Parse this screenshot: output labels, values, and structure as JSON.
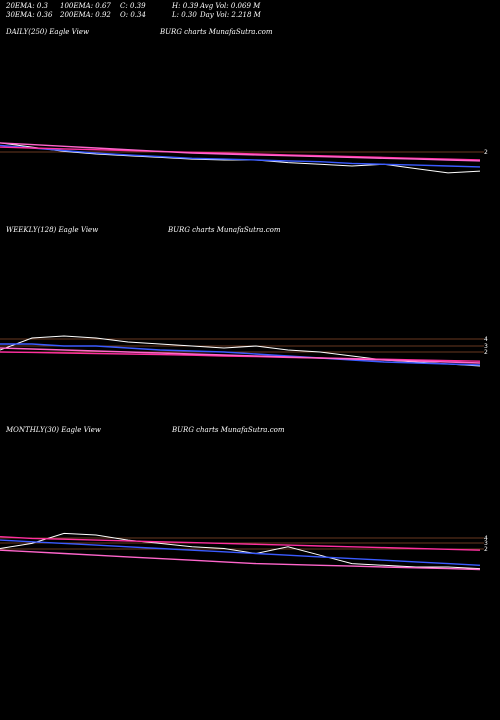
{
  "header": {
    "ema20": "20EMA: 0.3",
    "ema30": "30EMA: 0.36",
    "ema100": "100EMA: 0.67",
    "ema200": "200EMA: 0.92",
    "close": "C: 0.39",
    "open": "O: 0.34",
    "high": "H: 0.39",
    "low": "L: 0.30",
    "avg_vol": "Avg Vol: 0.069 M",
    "day_vol": "Day Vol: 2.218 M"
  },
  "panels": [
    {
      "label": "DAILY(250) Eagle   View",
      "watermark": "BURG charts MunafaSutra.com"
    },
    {
      "label": "WEEKLY(128) Eagle   View",
      "watermark": "BURG charts MunafaSutra.com"
    },
    {
      "label": "MONTHLY(30) Eagle   View",
      "watermark": "BURG charts MunafaSutra.com"
    }
  ],
  "colors": {
    "background": "#000000",
    "price": "#ffffff",
    "ema_blue": "#3a5bff",
    "ema_magenta": "#ff2fa0",
    "ema_pink": "#ff66cc",
    "ema_orange": "#ff9a30",
    "level_line": "#8a4a2a"
  },
  "chart_data": [
    {
      "type": "line",
      "title": "DAILY(250) Eagle   View",
      "level_lines": [
        2
      ],
      "y_ticks": [
        "2"
      ],
      "series": [
        {
          "values": [
            2.05,
            2.0,
            1.95,
            1.92,
            1.9,
            1.88,
            1.86,
            1.85,
            1.85,
            1.82,
            1.8,
            1.78,
            1.8,
            1.75,
            1.7,
            1.72
          ]
        },
        {
          "values": [
            2.02,
            1.99,
            1.96,
            1.93,
            1.91,
            1.89,
            1.87,
            1.86,
            1.85,
            1.84,
            1.83,
            1.81,
            1.8,
            1.79,
            1.78,
            1.77
          ]
        },
        {
          "values": [
            2.0,
            1.99,
            1.98,
            1.97,
            1.96,
            1.95,
            1.94,
            1.93,
            1.92,
            1.91,
            1.9,
            1.89,
            1.88,
            1.87,
            1.86,
            1.85
          ]
        },
        {
          "values": [
            2.05,
            2.03,
            2.01,
            1.99,
            1.97,
            1.95,
            1.93,
            1.92,
            1.91,
            1.9,
            1.89,
            1.88,
            1.87,
            1.86,
            1.85,
            1.84
          ]
        }
      ]
    },
    {
      "type": "line",
      "title": "WEEKLY(128) Eagle   View",
      "level_lines": [
        4,
        3,
        2
      ],
      "y_ticks": [
        "4",
        "3",
        "2"
      ],
      "series": [
        {
          "values": [
            2.0,
            2.6,
            2.7,
            2.6,
            2.4,
            2.3,
            2.2,
            2.1,
            2.2,
            2.0,
            1.9,
            1.7,
            1.5,
            1.4,
            1.3,
            1.2
          ]
        },
        {
          "values": [
            2.3,
            2.3,
            2.2,
            2.2,
            2.1,
            2.0,
            1.95,
            1.9,
            1.8,
            1.7,
            1.6,
            1.5,
            1.4,
            1.35,
            1.3,
            1.25
          ]
        },
        {
          "values": [
            1.9,
            1.88,
            1.85,
            1.82,
            1.8,
            1.77,
            1.74,
            1.7,
            1.67,
            1.63,
            1.6,
            1.57,
            1.54,
            1.5,
            1.47,
            1.44
          ]
        },
        {
          "values": [
            2.1,
            2.05,
            2.0,
            1.95,
            1.9,
            1.85,
            1.8,
            1.75,
            1.7,
            1.65,
            1.6,
            1.55,
            1.5,
            1.45,
            1.4,
            1.35
          ]
        }
      ]
    },
    {
      "type": "line",
      "title": "MONTHLY(30) Eagle   View",
      "level_lines": [
        4,
        3,
        2
      ],
      "y_ticks": [
        "4",
        "3",
        "2"
      ],
      "series": [
        {
          "values": [
            1.9,
            2.2,
            2.8,
            2.7,
            2.4,
            2.2,
            2.0,
            1.9,
            1.6,
            2.0,
            1.5,
            1.0,
            0.9,
            0.8,
            0.8,
            0.7
          ]
        },
        {
          "values": [
            2.4,
            2.3,
            2.2,
            2.1,
            2.0,
            1.9,
            1.8,
            1.7,
            1.6,
            1.5,
            1.4,
            1.3,
            1.2,
            1.1,
            1.0,
            0.9
          ]
        },
        {
          "values": [
            2.6,
            2.5,
            2.45,
            2.4,
            2.35,
            2.3,
            2.25,
            2.2,
            2.15,
            2.1,
            2.05,
            2.0,
            1.95,
            1.9,
            1.85,
            1.8
          ]
        },
        {
          "values": [
            1.8,
            1.7,
            1.6,
            1.5,
            1.4,
            1.3,
            1.2,
            1.1,
            1.0,
            0.95,
            0.9,
            0.85,
            0.8,
            0.75,
            0.7,
            0.65
          ]
        }
      ]
    }
  ]
}
